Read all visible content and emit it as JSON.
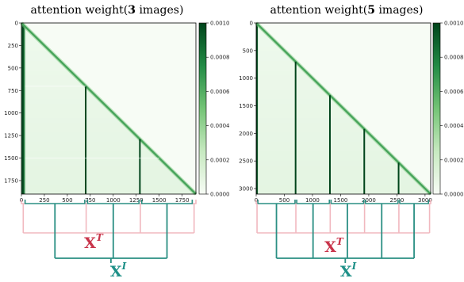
{
  "colors": {
    "low": "#f7fcf5",
    "high": "#00441b",
    "text_brace": "#f1b8bf",
    "image_brace": "#2a8f83",
    "text_symbol": "#c8334a",
    "image_symbol": "#1e9088"
  },
  "chart_data": [
    {
      "type": "heatmap",
      "title_prefix": "attention weight(",
      "title_count": "3",
      "title_suffix": " images)",
      "colormap": "Greens",
      "size": 1900,
      "xticks": [
        0,
        250,
        500,
        750,
        1000,
        1250,
        1500,
        1750
      ],
      "yticks": [
        0,
        250,
        500,
        750,
        1000,
        1250,
        1500,
        1750
      ],
      "xtick_labels": [
        "0",
        "250",
        "500",
        "750",
        "1000",
        "1250",
        "1500",
        "1750"
      ],
      "ytick_labels": [
        "0",
        "250",
        "500",
        "750",
        "1000",
        "1250",
        "1500",
        "1750"
      ],
      "colorbar": {
        "min": 0,
        "max": 0.001,
        "ticks": [
          "0.0000",
          "0.0002",
          "0.0004",
          "0.0006",
          "0.0008",
          "0.0010"
        ]
      },
      "image_token_columns": [
        700,
        1290
      ],
      "text_segments": [
        [
          0,
          40
        ],
        [
          690,
          720
        ],
        [
          1280,
          1310
        ],
        [
          1860,
          1900
        ]
      ],
      "image_segments": [
        [
          40,
          690
        ],
        [
          720,
          1280
        ],
        [
          1310,
          1860
        ]
      ],
      "symbol_text_main": "X",
      "symbol_text_sup": "T",
      "symbol_image_main": "X",
      "symbol_image_sup": "I"
    },
    {
      "type": "heatmap",
      "title_prefix": "attention weight(",
      "title_count": "5",
      "title_suffix": " images)",
      "colormap": "Greens",
      "size": 3100,
      "xticks": [
        0,
        500,
        1000,
        1500,
        2000,
        2500,
        3000
      ],
      "yticks": [
        0,
        500,
        1000,
        1500,
        2000,
        2500,
        3000
      ],
      "xtick_labels": [
        "0",
        "500",
        "1000",
        "1500",
        "2000",
        "2500",
        "3000"
      ],
      "ytick_labels": [
        "0",
        "500",
        "1000",
        "1500",
        "2000",
        "2500",
        "3000"
      ],
      "colorbar": {
        "min": 0,
        "max": 0.001,
        "ticks": [
          "0.0000",
          "0.0002",
          "0.0004",
          "0.0006",
          "0.0008",
          "0.0010"
        ]
      },
      "image_token_columns": [
        700,
        1310,
        1920,
        2530
      ],
      "text_segments": [
        [
          0,
          30
        ],
        [
          690,
          720
        ],
        [
          1300,
          1330
        ],
        [
          1910,
          1940
        ],
        [
          2520,
          2550
        ],
        [
          3060,
          3100
        ]
      ],
      "image_segments": [
        [
          30,
          690
        ],
        [
          720,
          1300
        ],
        [
          1330,
          1910
        ],
        [
          1940,
          2520
        ],
        [
          2550,
          3060
        ]
      ],
      "symbol_text_main": "X",
      "symbol_text_sup": "T",
      "symbol_image_main": "X",
      "symbol_image_sup": "I"
    }
  ]
}
